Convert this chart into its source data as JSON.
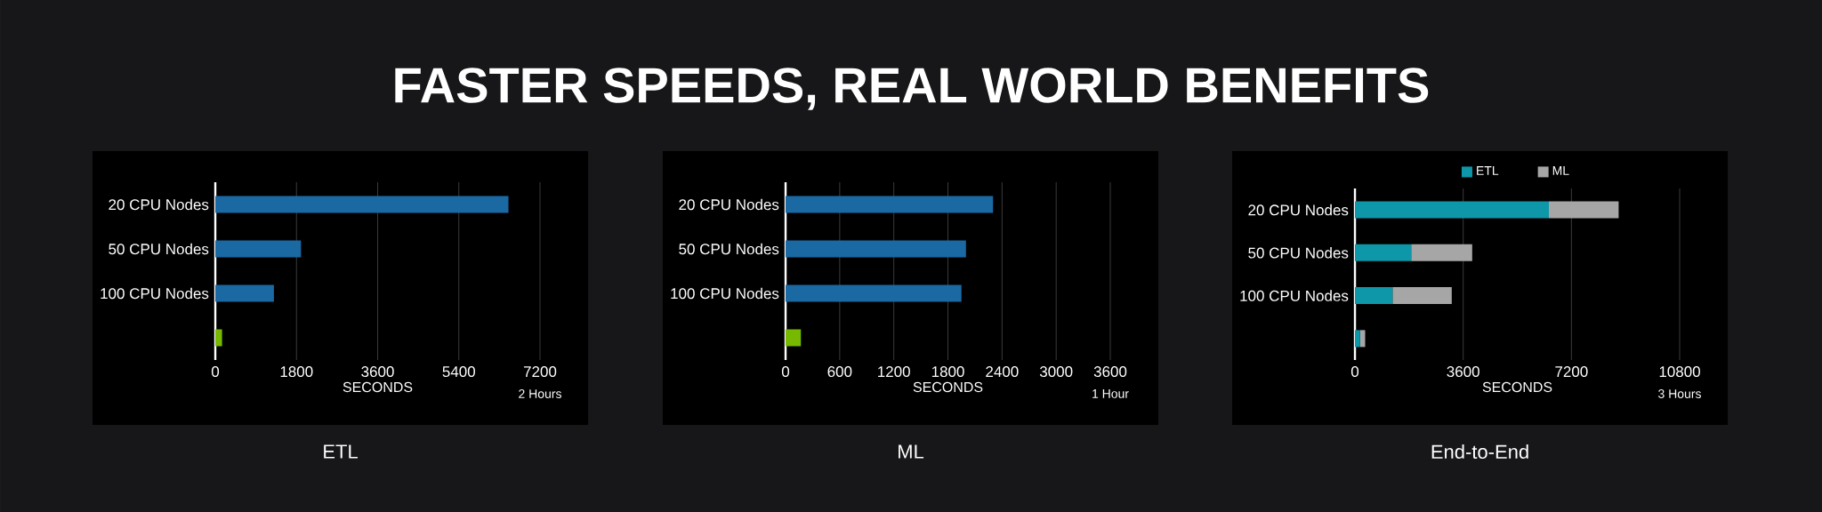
{
  "chart_data": [
    {
      "type": "bar",
      "title": "FASTER SPEEDS, REAL WORLD BENEFITS",
      "subtitle": "ETL",
      "orientation": "horizontal",
      "categories": [
        "20 CPU Nodes",
        "50 CPU Nodes",
        "100 CPU Nodes",
        null
      ],
      "values": [
        6500,
        1900,
        1300,
        150
      ],
      "colors": [
        "#1a69a3",
        "#1a69a3",
        "#1a69a3",
        "#76b900"
      ],
      "xlabel": "SECONDS",
      "xlim": [
        0,
        7200
      ],
      "xticks": [
        0,
        1800,
        3600,
        5400,
        7200
      ],
      "grid": "x",
      "annotations": [
        "2 Hours"
      ]
    },
    {
      "type": "bar",
      "subtitle": "ML",
      "orientation": "horizontal",
      "categories": [
        "20 CPU Nodes",
        "50 CPU Nodes",
        "100 CPU Nodes",
        null
      ],
      "values": [
        2300,
        2000,
        1950,
        170
      ],
      "colors": [
        "#1a69a3",
        "#1a69a3",
        "#1a69a3",
        "#76b900"
      ],
      "xlabel": "SECONDS",
      "xlim": [
        0,
        3600
      ],
      "xticks": [
        0,
        600,
        1200,
        1800,
        2400,
        3000,
        3600
      ],
      "grid": "x",
      "annotations": [
        "1 Hour"
      ]
    },
    {
      "type": "bar",
      "subtitle": "End-to-End",
      "orientation": "horizontal",
      "stacked": true,
      "categories": [
        "20 CPU Nodes",
        "50 CPU Nodes",
        "100 CPU Nodes",
        null
      ],
      "series": [
        {
          "name": "ETL",
          "color": "#0e97a8",
          "values": [
            6450,
            1870,
            1250,
            170
          ]
        },
        {
          "name": "ML",
          "color": "#a6a6a6",
          "values": [
            2320,
            2030,
            1970,
            170
          ]
        }
      ],
      "xlabel": "SECONDS",
      "xlim": [
        0,
        10800
      ],
      "xticks": [
        0,
        3600,
        7200,
        10800
      ],
      "grid": "x",
      "legend": "top",
      "annotations": [
        "3 Hours"
      ]
    }
  ]
}
